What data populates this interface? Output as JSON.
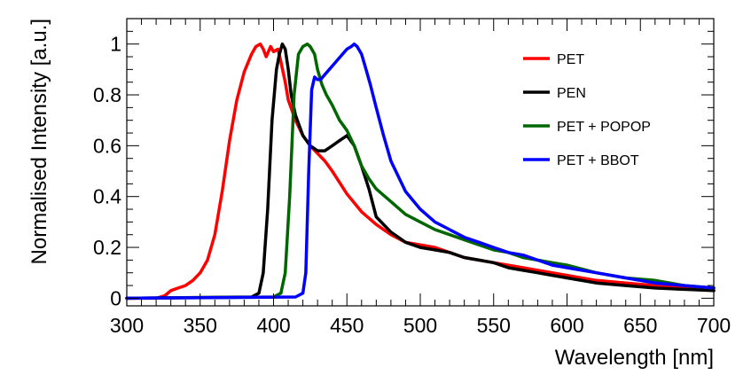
{
  "chart_data": {
    "type": "line",
    "title": "",
    "xlabel": "Wavelength [nm]",
    "ylabel": "Normalised Intensity [a.u.]",
    "xlim": [
      300,
      700
    ],
    "ylim": [
      -0.03,
      1.1
    ],
    "xticks": [
      300,
      350,
      400,
      450,
      500,
      550,
      600,
      650,
      700
    ],
    "xtick_labels": [
      "300",
      "350",
      "400",
      "450",
      "500",
      "550",
      "600",
      "650",
      "700"
    ],
    "yticks": [
      0,
      0.2,
      0.4,
      0.6,
      0.8,
      1
    ],
    "ytick_labels": [
      "0",
      "0.2",
      "0.4",
      "0.6",
      "0.8",
      "1"
    ],
    "grid": false,
    "legend_position": "top-right",
    "series": [
      {
        "name": "PET",
        "color": "#ff0000",
        "x": [
          300,
          320,
          326,
          330,
          335,
          340,
          345,
          350,
          355,
          360,
          365,
          370,
          375,
          380,
          385,
          388,
          391,
          393,
          395,
          398,
          400,
          403,
          405,
          408,
          410,
          415,
          420,
          425,
          430,
          435,
          440,
          450,
          460,
          470,
          480,
          490,
          500,
          510,
          520,
          530,
          540,
          550,
          560,
          570,
          580,
          590,
          600,
          620,
          640,
          660,
          680,
          700
        ],
        "y": [
          0.0,
          0.0,
          0.01,
          0.03,
          0.04,
          0.05,
          0.07,
          0.1,
          0.15,
          0.25,
          0.42,
          0.62,
          0.78,
          0.89,
          0.96,
          0.99,
          1.0,
          0.98,
          0.95,
          0.99,
          0.97,
          0.98,
          0.93,
          0.85,
          0.78,
          0.7,
          0.64,
          0.6,
          0.57,
          0.54,
          0.5,
          0.41,
          0.34,
          0.29,
          0.25,
          0.22,
          0.21,
          0.2,
          0.18,
          0.16,
          0.15,
          0.14,
          0.13,
          0.12,
          0.11,
          0.1,
          0.09,
          0.07,
          0.06,
          0.05,
          0.04,
          0.03
        ]
      },
      {
        "name": "PEN",
        "color": "#000000",
        "x": [
          300,
          385,
          390,
          393,
          396,
          399,
          402,
          404,
          406,
          408,
          410,
          412,
          415,
          420,
          425,
          430,
          435,
          440,
          445,
          450,
          455,
          460,
          465,
          470,
          480,
          490,
          500,
          510,
          520,
          530,
          540,
          550,
          560,
          570,
          580,
          590,
          600,
          620,
          640,
          660,
          680,
          700
        ],
        "y": [
          0.0,
          0.005,
          0.02,
          0.1,
          0.35,
          0.7,
          0.9,
          0.96,
          1.0,
          0.98,
          0.9,
          0.8,
          0.72,
          0.64,
          0.6,
          0.58,
          0.58,
          0.6,
          0.62,
          0.64,
          0.6,
          0.52,
          0.43,
          0.32,
          0.26,
          0.22,
          0.2,
          0.19,
          0.18,
          0.16,
          0.15,
          0.14,
          0.12,
          0.11,
          0.1,
          0.09,
          0.08,
          0.06,
          0.05,
          0.04,
          0.035,
          0.03
        ]
      },
      {
        "name": "PET + POPOP",
        "color": "#006600",
        "x": [
          300,
          400,
          405,
          408,
          411,
          414,
          417,
          420,
          423,
          425,
          428,
          430,
          433,
          436,
          440,
          445,
          450,
          455,
          460,
          465,
          470,
          480,
          490,
          500,
          510,
          520,
          530,
          540,
          550,
          560,
          570,
          580,
          590,
          600,
          620,
          640,
          660,
          680,
          700
        ],
        "y": [
          0.0,
          0.005,
          0.02,
          0.1,
          0.4,
          0.8,
          0.96,
          0.99,
          1.0,
          0.99,
          0.96,
          0.9,
          0.84,
          0.8,
          0.76,
          0.7,
          0.66,
          0.6,
          0.52,
          0.47,
          0.43,
          0.38,
          0.33,
          0.3,
          0.27,
          0.25,
          0.23,
          0.21,
          0.19,
          0.18,
          0.16,
          0.15,
          0.14,
          0.13,
          0.1,
          0.08,
          0.07,
          0.05,
          0.04
        ]
      },
      {
        "name": "PET + BBOT",
        "color": "#0000ff",
        "x": [
          300,
          415,
          420,
          422,
          424,
          426,
          428,
          430,
          432,
          435,
          438,
          441,
          444,
          447,
          450,
          453,
          455,
          457,
          460,
          463,
          466,
          470,
          475,
          480,
          490,
          500,
          510,
          520,
          530,
          540,
          550,
          560,
          570,
          580,
          590,
          600,
          620,
          640,
          660,
          680,
          700
        ],
        "y": [
          0.0,
          0.005,
          0.02,
          0.1,
          0.5,
          0.82,
          0.87,
          0.86,
          0.86,
          0.88,
          0.9,
          0.92,
          0.94,
          0.96,
          0.98,
          0.99,
          1.0,
          0.99,
          0.96,
          0.9,
          0.84,
          0.75,
          0.64,
          0.54,
          0.42,
          0.35,
          0.3,
          0.27,
          0.24,
          0.22,
          0.2,
          0.18,
          0.17,
          0.15,
          0.13,
          0.12,
          0.1,
          0.08,
          0.06,
          0.05,
          0.04
        ]
      }
    ]
  }
}
